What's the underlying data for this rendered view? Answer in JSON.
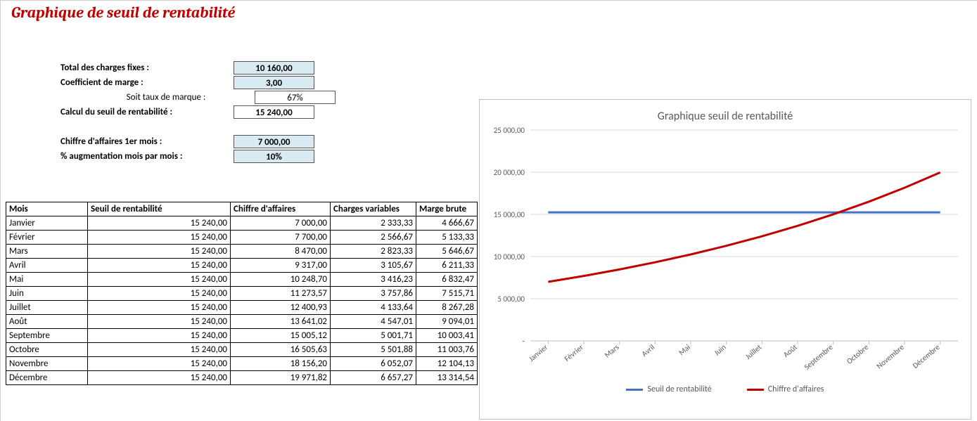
{
  "title": "Graphique de seuil de rentabilité",
  "params": {
    "charges_fixes_label": "Total des charges fixes :",
    "charges_fixes_value": "10 160,00",
    "coef_marge_label": "Coefficient de marge :",
    "coef_marge_value": "3,00",
    "taux_marque_label": "Soit taux de marque :",
    "taux_marque_value": "67%",
    "seuil_label": "Calcul du seuil de rentabilité :",
    "seuil_value": "15 240,00",
    "ca_1er_label": "Chiffre d'affaires 1er mois :",
    "ca_1er_value": "7 000,00",
    "aug_label": "% augmentation mois par mois :",
    "aug_value": "10%"
  },
  "table": {
    "headers": {
      "mois": "Mois",
      "seuil": "Seuil de rentabilité",
      "ca": "Chiffre d'affaires",
      "cv": "Charges variables",
      "mb": "Marge brute"
    },
    "rows": [
      {
        "mois": "Janvier",
        "seuil": "15 240,00",
        "ca": "7 000,00",
        "cv": "2 333,33",
        "mb": "4 666,67"
      },
      {
        "mois": "Février",
        "seuil": "15 240,00",
        "ca": "7 700,00",
        "cv": "2 566,67",
        "mb": "5 133,33"
      },
      {
        "mois": "Mars",
        "seuil": "15 240,00",
        "ca": "8 470,00",
        "cv": "2 823,33",
        "mb": "5 646,67"
      },
      {
        "mois": "Avril",
        "seuil": "15 240,00",
        "ca": "9 317,00",
        "cv": "3 105,67",
        "mb": "6 211,33"
      },
      {
        "mois": "Mai",
        "seuil": "15 240,00",
        "ca": "10 248,70",
        "cv": "3 416,23",
        "mb": "6 832,47"
      },
      {
        "mois": "Juin",
        "seuil": "15 240,00",
        "ca": "11 273,57",
        "cv": "3 757,86",
        "mb": "7 515,71"
      },
      {
        "mois": "Juillet",
        "seuil": "15 240,00",
        "ca": "12 400,93",
        "cv": "4 133,64",
        "mb": "8 267,28"
      },
      {
        "mois": "Août",
        "seuil": "15 240,00",
        "ca": "13 641,02",
        "cv": "4 547,01",
        "mb": "9 094,01"
      },
      {
        "mois": "Septembre",
        "seuil": "15 240,00",
        "ca": "15 005,12",
        "cv": "5 001,71",
        "mb": "10 003,41"
      },
      {
        "mois": "Octobre",
        "seuil": "15 240,00",
        "ca": "16 505,63",
        "cv": "5 501,88",
        "mb": "11 003,76"
      },
      {
        "mois": "Novembre",
        "seuil": "15 240,00",
        "ca": "18 156,20",
        "cv": "6 052,07",
        "mb": "12 104,13"
      },
      {
        "mois": "Décembre",
        "seuil": "15 240,00",
        "ca": "19 971,82",
        "cv": "6 657,27",
        "mb": "13 314,54"
      }
    ]
  },
  "chart": {
    "type": "line",
    "title": "Graphique seuil de rentabilité",
    "title_fontsize": 16,
    "label_fontsize": 11,
    "background_color": "#ffffff",
    "grid_color": "#d9d9d9",
    "axis_text_color": "#595959",
    "ylim": [
      0,
      25000
    ],
    "ytick_step": 5000,
    "yticks": [
      "-",
      "5 000,00",
      "10 000,00",
      "15 000,00",
      "20 000,00",
      "25 000,00"
    ],
    "categories": [
      "Janvier",
      "Février",
      "Mars",
      "Avril",
      "Mai",
      "Juin",
      "Juillet",
      "Août",
      "Septembre",
      "Octobre",
      "Novembre",
      "Décembre"
    ],
    "series": [
      {
        "name": "Seuil de rentabilité",
        "color": "#4472c4",
        "line_width": 3,
        "values": [
          15240,
          15240,
          15240,
          15240,
          15240,
          15240,
          15240,
          15240,
          15240,
          15240,
          15240,
          15240
        ]
      },
      {
        "name": "Chiffre d'affaires",
        "color": "#c00000",
        "line_width": 3,
        "values": [
          7000.0,
          7700.0,
          8470.0,
          9317.0,
          10248.7,
          11273.57,
          12400.93,
          13641.02,
          15005.12,
          16505.63,
          18156.2,
          19971.82
        ]
      }
    ],
    "legend_position": "bottom"
  }
}
